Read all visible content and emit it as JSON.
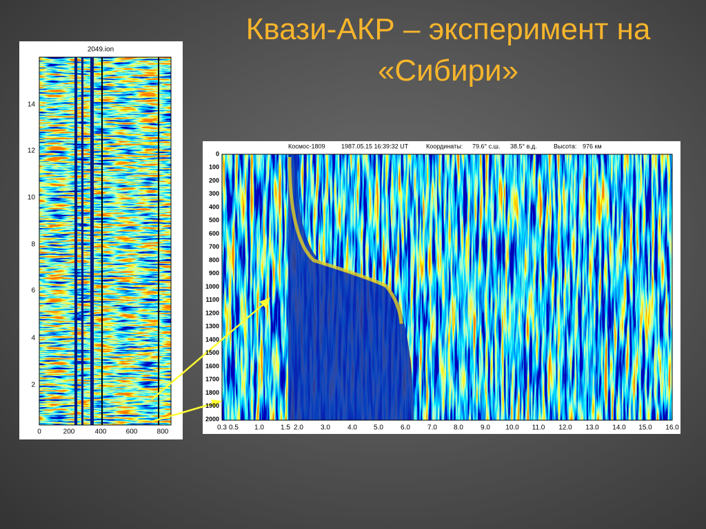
{
  "title": [
    "Квази-АКР – эксперимент на",
    "«Сибири»"
  ],
  "left_image": {
    "caption": "2049.ion",
    "yticks": [
      "14",
      "12",
      "10",
      "8",
      "6",
      "4",
      "2"
    ],
    "xticks": [
      "0",
      "200",
      "400",
      "600",
      "800"
    ]
  },
  "right_image": {
    "header": {
      "satellite": "Космос-1809",
      "datetime": "1987.05.15 16:39:32 UT",
      "coordinates_label": "Координаты:",
      "latitude": "79.6° с.ш.",
      "longitude": "38.5° в.д.",
      "altitude_label": "Высота:",
      "altitude": "976 км"
    },
    "yticks": [
      "0",
      "100",
      "200",
      "300",
      "400",
      "500",
      "600",
      "700",
      "800",
      "900",
      "1000",
      "1100",
      "1200",
      "1300",
      "1400",
      "1500",
      "1600",
      "1700",
      "1800",
      "1900",
      "2000"
    ],
    "xticks": [
      "0.3",
      "0.5",
      "1.0",
      "1.5",
      "2.0",
      "3.0",
      "4.0",
      "5.0",
      "6.0",
      "7.0",
      "8.0",
      "9.0",
      "10.0",
      "11.0",
      "12.0",
      "13.0",
      "14.0",
      "15.0",
      "16.0"
    ]
  }
}
